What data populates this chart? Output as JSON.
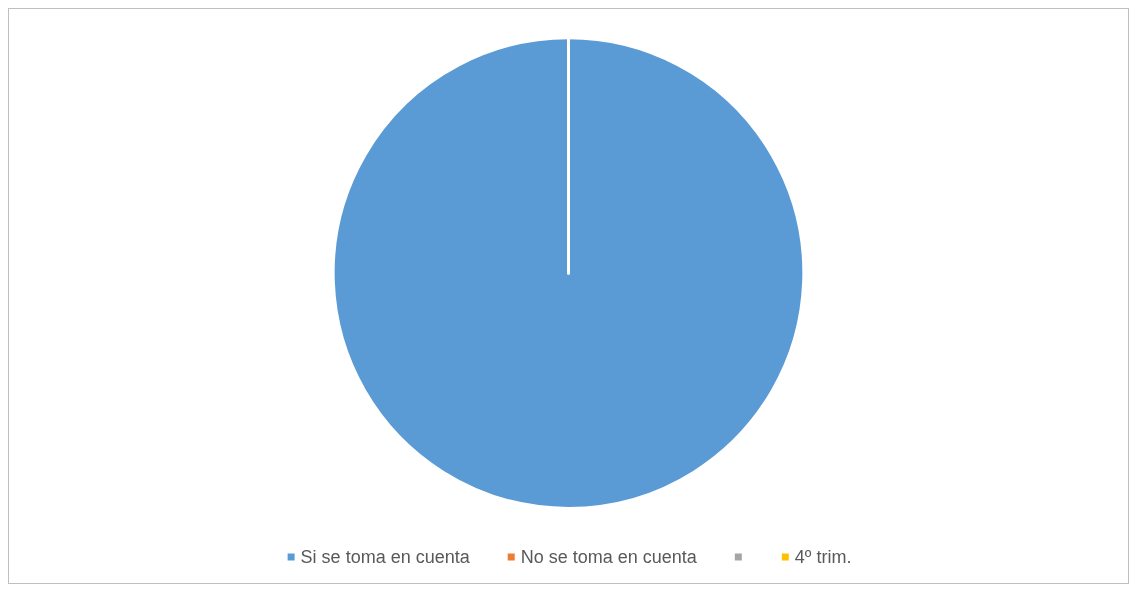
{
  "chart_data": {
    "type": "pie",
    "categories": [
      "Si se toma en cuenta",
      "No se toma en cuenta",
      null,
      "4º trim."
    ],
    "values": [
      100,
      0,
      0,
      0
    ],
    "colors": [
      "#5b9bd5",
      "#ed7d31",
      "#a5a5a5",
      "#ffc000"
    ],
    "legend": "bottom"
  }
}
